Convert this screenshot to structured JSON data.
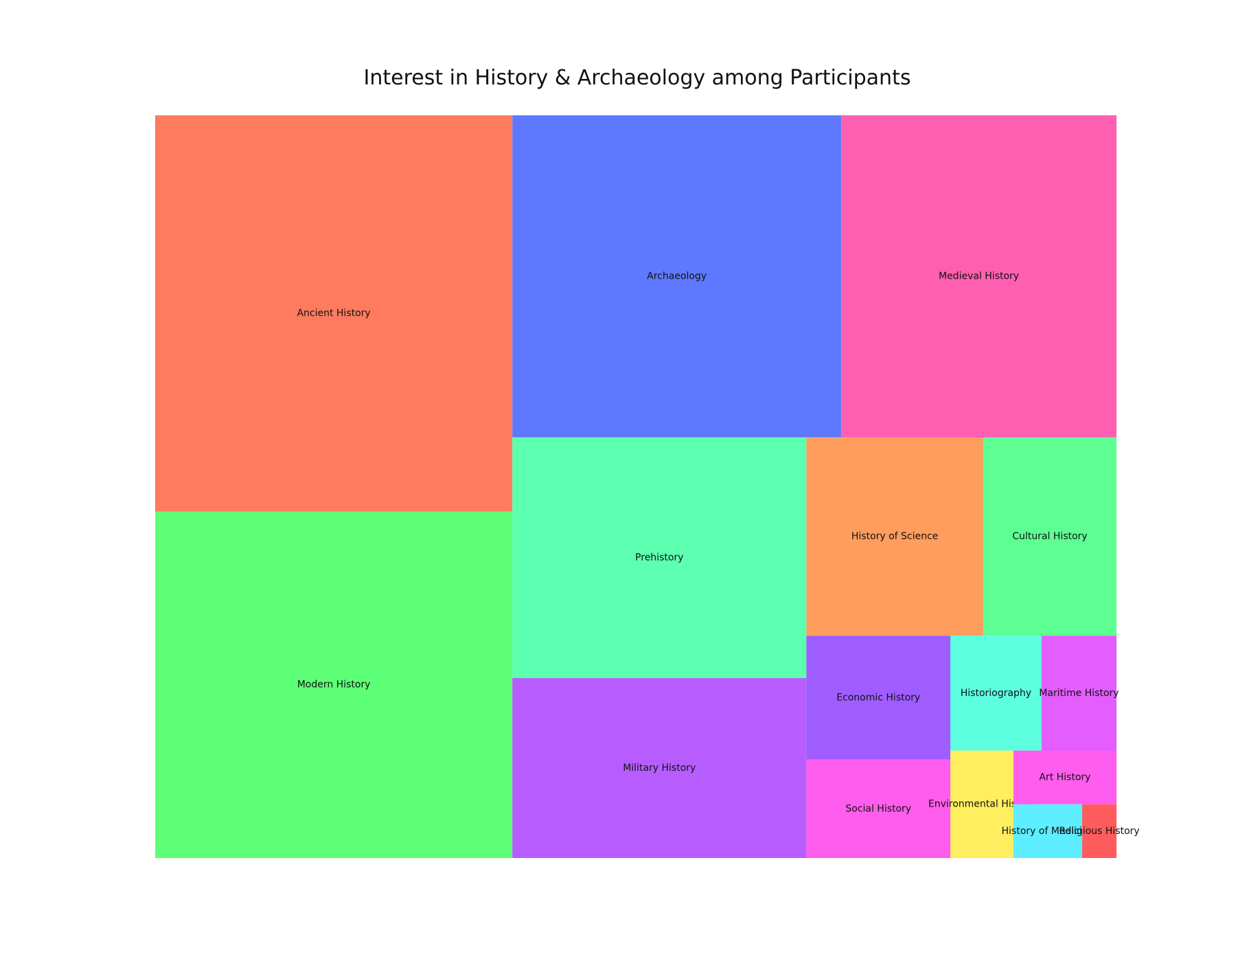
{
  "chart_data": {
    "type": "treemap",
    "title": "Interest in History & Archaeology among Participants",
    "items": [
      {
        "label": "Ancient History",
        "value": 230,
        "color": "#ff7b5f"
      },
      {
        "label": "Modern History",
        "value": 201,
        "color": "#5dff76"
      },
      {
        "label": "Archaeology",
        "value": 172,
        "color": "#5e79ff"
      },
      {
        "label": "Medieval History",
        "value": 144,
        "color": "#ff5fb1"
      },
      {
        "label": "Prehistory",
        "value": 115,
        "color": "#5dffb0"
      },
      {
        "label": "Military History",
        "value": 86,
        "color": "#b75dff"
      },
      {
        "label": "History of Science",
        "value": 57,
        "color": "#ff9d5e"
      },
      {
        "label": "Cultural History",
        "value": 43,
        "color": "#5dff92"
      },
      {
        "label": "Economic History",
        "value": 29,
        "color": "#9f5dff"
      },
      {
        "label": "Social History",
        "value": 23,
        "color": "#ff5ded"
      },
      {
        "label": "Historiography",
        "value": 17,
        "color": "#5dffe0"
      },
      {
        "label": "Maritime History",
        "value": 14,
        "color": "#e35dff"
      },
      {
        "label": "Environmental History",
        "value": 11,
        "color": "#ffee5d"
      },
      {
        "label": "Art History",
        "value": 9,
        "color": "#ff5dee"
      },
      {
        "label": "History of Medicine",
        "value": 6,
        "color": "#5deeff"
      },
      {
        "label": "Religious History",
        "value": 3,
        "color": "#ff5d5d"
      }
    ]
  }
}
